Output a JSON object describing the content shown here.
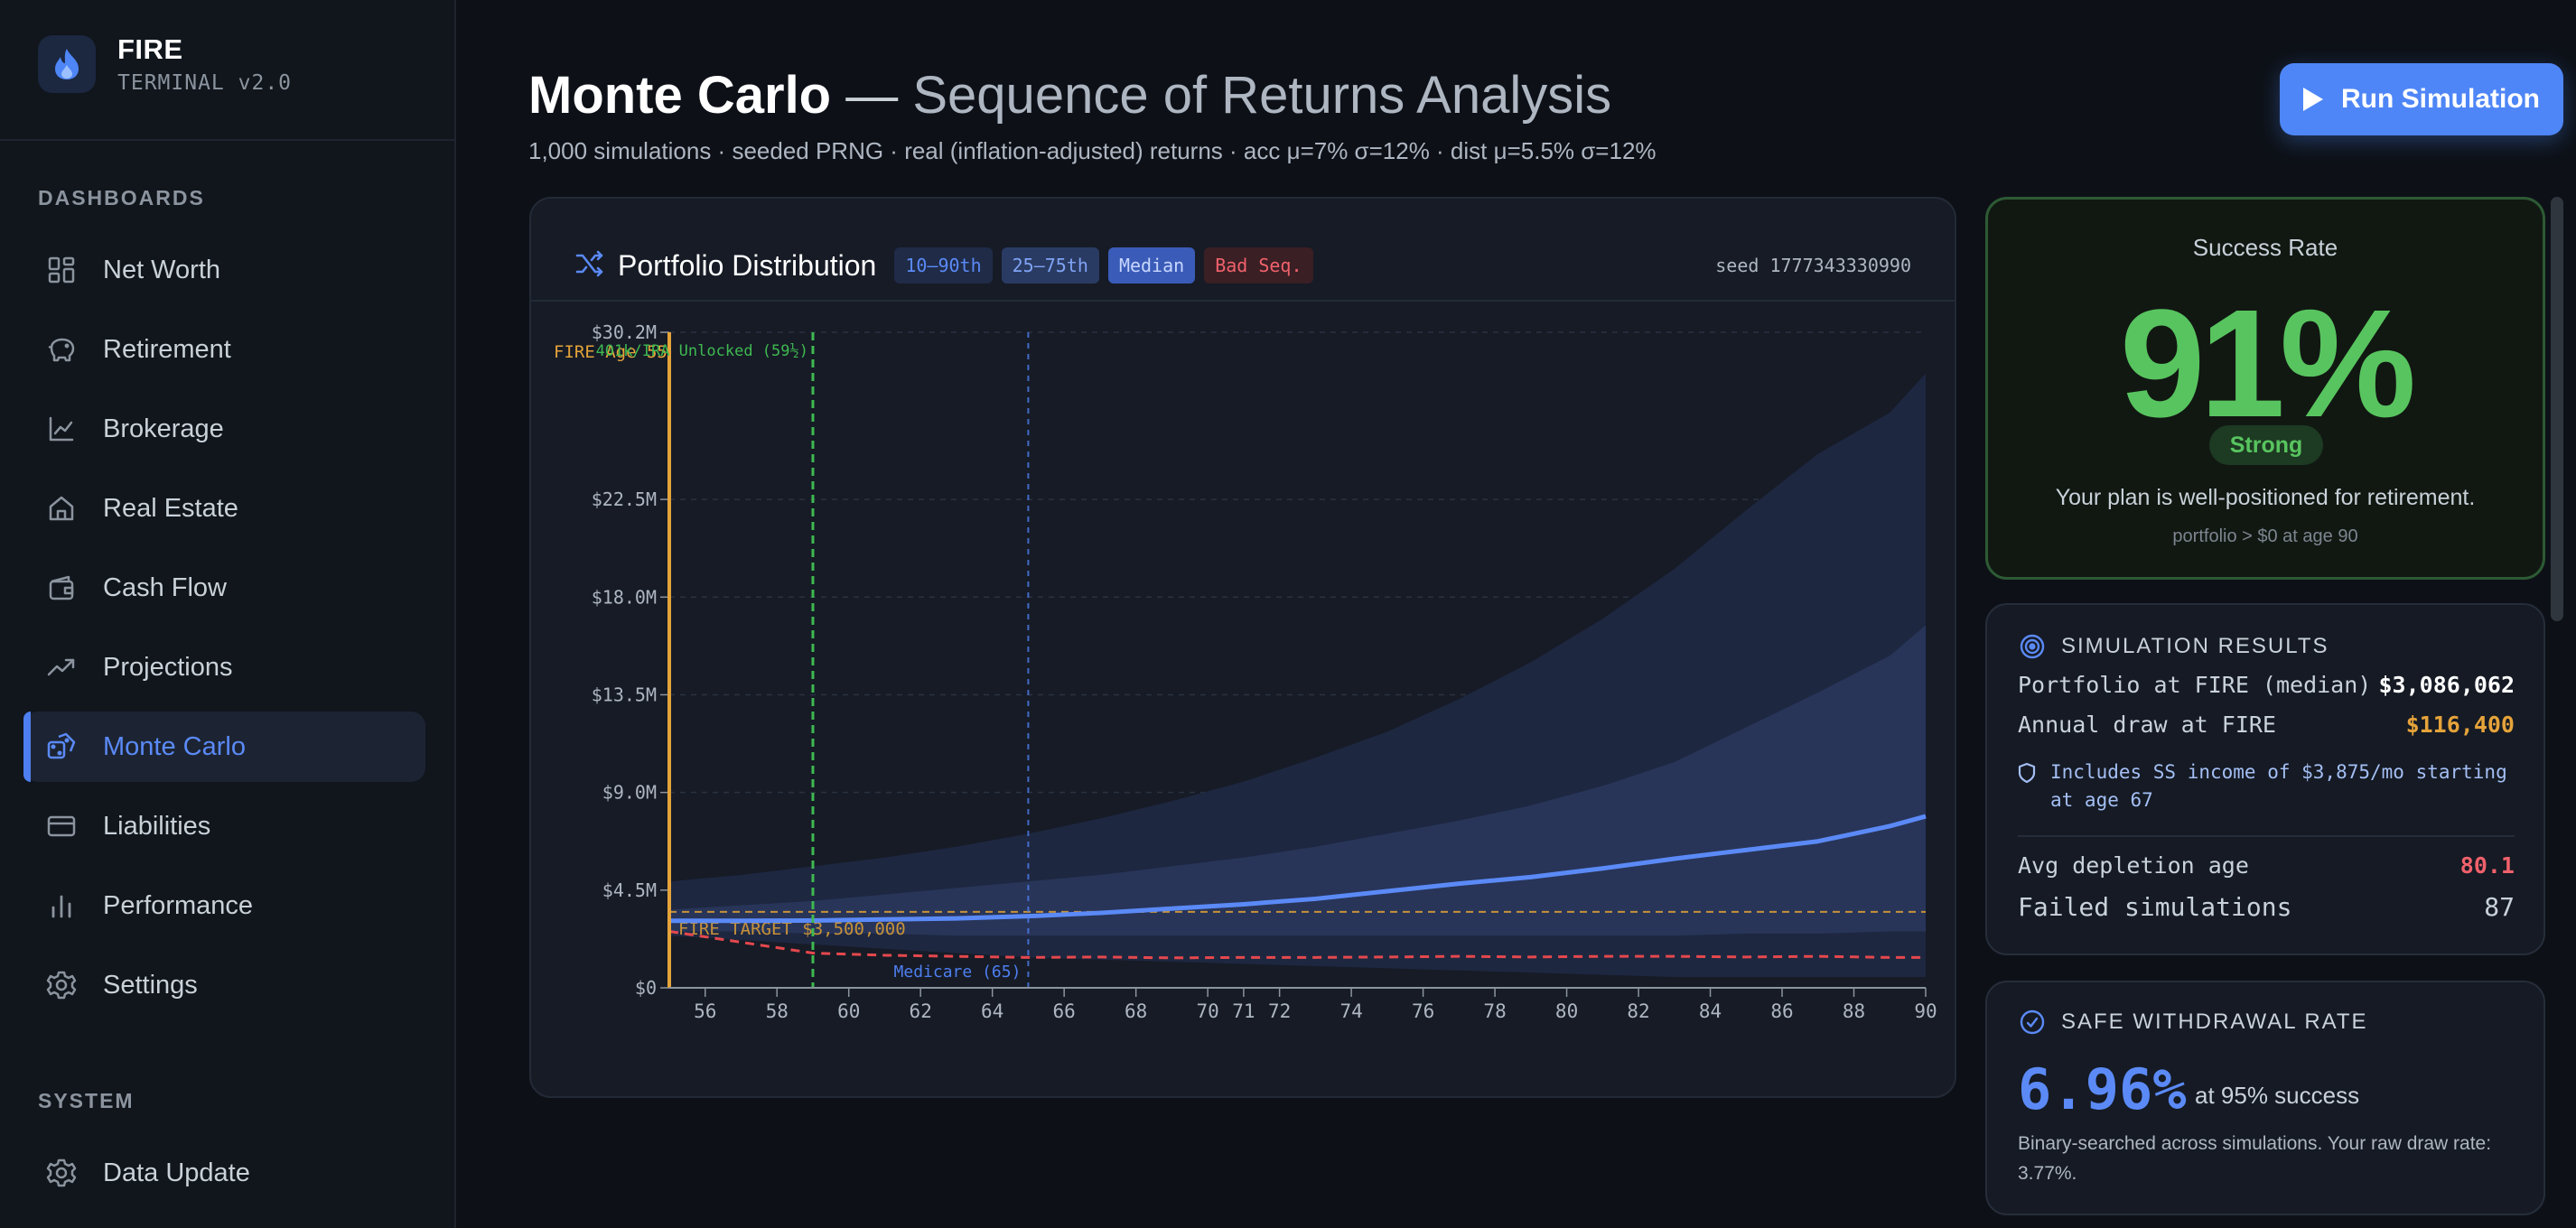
{
  "brand": {
    "title": "FIRE",
    "subtitle": "TERMINAL v2.0"
  },
  "sidebar": {
    "sections": [
      {
        "label": "DASHBOARDS"
      },
      {
        "label": "SYSTEM"
      }
    ],
    "items": [
      {
        "label": "Net Worth",
        "icon": "grid-icon"
      },
      {
        "label": "Retirement",
        "icon": "piggy-bank-icon"
      },
      {
        "label": "Brokerage",
        "icon": "line-chart-icon"
      },
      {
        "label": "Real Estate",
        "icon": "home-icon"
      },
      {
        "label": "Cash Flow",
        "icon": "wallet-icon"
      },
      {
        "label": "Projections",
        "icon": "trending-up-icon"
      },
      {
        "label": "Monte Carlo",
        "icon": "dice-icon",
        "active": true
      },
      {
        "label": "Liabilities",
        "icon": "credit-card-icon"
      },
      {
        "label": "Performance",
        "icon": "bar-chart-icon"
      },
      {
        "label": "Settings",
        "icon": "gear-icon"
      }
    ],
    "system_items": [
      {
        "label": "Data Update",
        "icon": "gear-icon"
      }
    ]
  },
  "header": {
    "title": "Monte Carlo",
    "dash": " — ",
    "title_sub": "Sequence of Returns Analysis",
    "subtitle": "1,000 simulations · seeded PRNG · real (inflation-adjusted) returns · acc μ=7% σ=12% · dist μ=5.5% σ=12%",
    "run_button": "Run Simulation"
  },
  "chart_card": {
    "title": "Portfolio Distribution",
    "chips": [
      "10–90th",
      "25–75th",
      "Median",
      "Bad Seq."
    ],
    "seed": "seed 1777343330990"
  },
  "chart_data": {
    "type": "area",
    "xlabel": "",
    "ylabel": "",
    "xlim": [
      55,
      90
    ],
    "ylim": [
      0,
      30.2
    ],
    "x_ticks": [
      56,
      58,
      60,
      62,
      64,
      66,
      68,
      70,
      71,
      72,
      74,
      76,
      78,
      80,
      82,
      84,
      86,
      88,
      90
    ],
    "y_ticks": [
      0,
      4.5,
      9.0,
      13.5,
      18.0,
      22.5,
      30.2
    ],
    "y_tick_labels": [
      "$0",
      "$4.5M",
      "$9.0M",
      "$13.5M",
      "$18.0M",
      "$22.5M",
      "$30.2M"
    ],
    "x": [
      55,
      57,
      59,
      61,
      63,
      65,
      67,
      69,
      71,
      73,
      75,
      77,
      79,
      81,
      83,
      85,
      87,
      89,
      90
    ],
    "series": [
      {
        "name": "10–90th",
        "low": [
          2.4,
          2.2,
          2.0,
          1.8,
          1.6,
          1.4,
          1.3,
          1.2,
          1.1,
          1.0,
          0.9,
          0.8,
          0.7,
          0.6,
          0.5,
          0.5,
          0.5,
          0.5,
          0.5
        ],
        "high": [
          4.9,
          5.2,
          5.6,
          6.0,
          6.5,
          7.1,
          7.8,
          8.6,
          9.5,
          10.6,
          11.8,
          13.3,
          15.0,
          17.0,
          19.3,
          22.0,
          24.6,
          26.5,
          28.3
        ]
      },
      {
        "name": "25–75th",
        "low": [
          2.6,
          2.6,
          2.5,
          2.5,
          2.4,
          2.4,
          2.4,
          2.4,
          2.4,
          2.4,
          2.4,
          2.4,
          2.4,
          2.4,
          2.4,
          2.5,
          2.5,
          2.6,
          2.6
        ],
        "high": [
          3.6,
          3.8,
          4.0,
          4.3,
          4.6,
          4.9,
          5.2,
          5.6,
          6.0,
          6.5,
          7.1,
          7.7,
          8.4,
          9.3,
          10.4,
          12.0,
          13.6,
          15.3,
          16.7
        ]
      },
      {
        "name": "Median",
        "values": [
          3.09,
          3.09,
          3.1,
          3.15,
          3.2,
          3.3,
          3.45,
          3.65,
          3.85,
          4.1,
          4.45,
          4.8,
          5.1,
          5.5,
          5.95,
          6.35,
          6.75,
          7.45,
          7.9
        ]
      },
      {
        "name": "Bad Seq.",
        "values": [
          2.6,
          2.1,
          1.6,
          1.5,
          1.45,
          1.4,
          1.42,
          1.38,
          1.4,
          1.4,
          1.42,
          1.45,
          1.42,
          1.45,
          1.45,
          1.42,
          1.45,
          1.4,
          1.4
        ]
      }
    ],
    "target": {
      "value": 3.5,
      "label": "FIRE TARGET $3,500,000"
    },
    "annotations": [
      {
        "x": 55,
        "label": "FIRE Age 55",
        "color": "#e5a33a"
      },
      {
        "x": 59,
        "label": "401k/IRA Unlocked (59½)",
        "color": "#3fb950"
      },
      {
        "x": 65,
        "label": "Medicare (65)",
        "color": "#4e7ff0"
      }
    ],
    "grid": true,
    "legend": "top-left"
  },
  "success": {
    "label": "Success Rate",
    "value": "91%",
    "badge": "Strong",
    "description": "Your plan is well-positioned for retirement.",
    "note": "portfolio > $0 at age 90"
  },
  "results": {
    "title": "SIMULATION RESULTS",
    "rows": [
      {
        "label": "Portfolio at FIRE (median)",
        "value": "$3,086,062",
        "color": "#ffffff"
      },
      {
        "label": "Annual draw at FIRE",
        "value": "$116,400",
        "color": "#e5a33a"
      }
    ],
    "ss_note": "Includes SS income of $3,875/mo starting at age 67",
    "rows2": [
      {
        "label": "Avg depletion age",
        "value": "80.1",
        "color": "#f0616b"
      },
      {
        "label": "Failed simulations",
        "value": "87",
        "color": "#c9d1d9"
      }
    ]
  },
  "swr": {
    "title": "SAFE WITHDRAWAL RATE",
    "value": "6.96%",
    "suffix": "at 95% success",
    "description": "Binary-searched across simulations. Your raw draw rate: 3.77%."
  },
  "colors": {
    "accent": "#4e86f7",
    "success": "#58c45f",
    "danger": "#f0616b",
    "warning": "#e5a33a"
  }
}
